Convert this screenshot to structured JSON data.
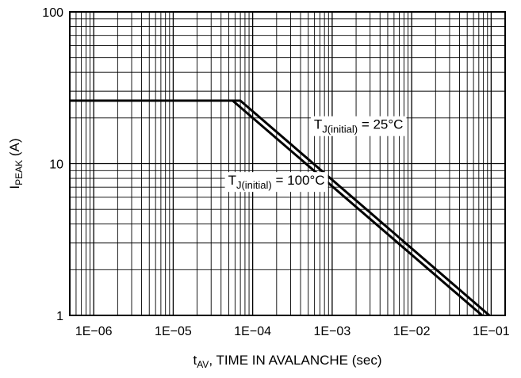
{
  "chart_data": {
    "type": "line",
    "x_scale": "log",
    "y_scale": "log",
    "xlim": [
      5e-07,
      0.15
    ],
    "ylim": [
      1,
      100
    ],
    "grid": true,
    "xticks": [
      {
        "value": 1e-06,
        "label": "1E−06"
      },
      {
        "value": 1e-05,
        "label": "1E−05"
      },
      {
        "value": 0.0001,
        "label": "1E−04"
      },
      {
        "value": 0.001,
        "label": "1E−03"
      },
      {
        "value": 0.01,
        "label": "1E−02"
      },
      {
        "value": 0.1,
        "label": "1E−01"
      }
    ],
    "yticks": [
      {
        "value": 1,
        "label": "1"
      },
      {
        "value": 10,
        "label": "10"
      },
      {
        "value": 100,
        "label": "100"
      }
    ],
    "xlabel": {
      "main": "t",
      "sub": "AV",
      "rest": ", TIME IN AVALANCHE (sec)"
    },
    "ylabel": {
      "main": "I",
      "sub": "PEAK",
      "rest": " (A)"
    },
    "series": [
      {
        "name": "T_J(initial) = 25°C",
        "x": [
          5e-07,
          7e-05,
          0.095
        ],
        "y": [
          26,
          26,
          1
        ]
      },
      {
        "name": "T_J(initial) = 100°C",
        "x": [
          5e-07,
          5.6e-05,
          0.077
        ],
        "y": [
          26,
          26,
          1
        ]
      }
    ],
    "annotations": [
      {
        "pre": "T",
        "sub": "J(initial)",
        "post": " = 25°C",
        "x": 0.00059,
        "y": 18.2
      },
      {
        "pre": "T",
        "sub": "J(initial)",
        "post": " = 100°C",
        "x": 4.9e-05,
        "y": 7.8
      }
    ]
  }
}
